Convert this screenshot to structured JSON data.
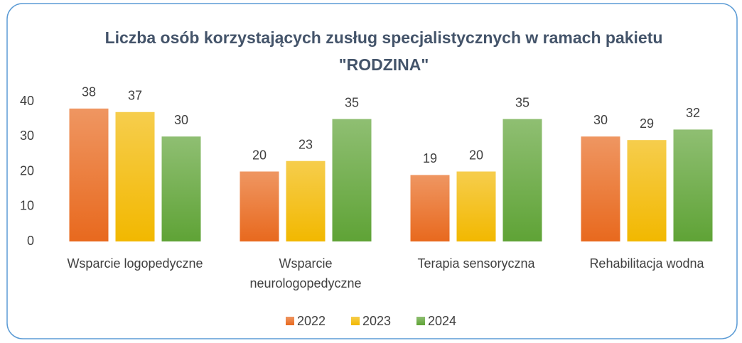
{
  "chart_data": {
    "type": "bar",
    "title": "Liczba osób korzystających zusług specjalistycznych w ramach pakietu \"RODZINA\"",
    "categories": [
      "Wsparcie logopedyczne",
      "Wsparcie neurologopedyczne",
      "Terapia sensoryczna",
      "Rehabilitacja wodna"
    ],
    "series": [
      {
        "name": "2022",
        "color": "#e8691e",
        "values": [
          38,
          20,
          19,
          30
        ]
      },
      {
        "name": "2023",
        "color": "#f2b800",
        "values": [
          37,
          23,
          20,
          29
        ]
      },
      {
        "name": "2024",
        "color": "#5fa336",
        "values": [
          30,
          35,
          35,
          32
        ]
      }
    ],
    "ylim": [
      0,
      40
    ],
    "yticks": [
      0,
      10,
      20,
      30,
      40
    ],
    "grid": false,
    "legend": "bottom"
  }
}
